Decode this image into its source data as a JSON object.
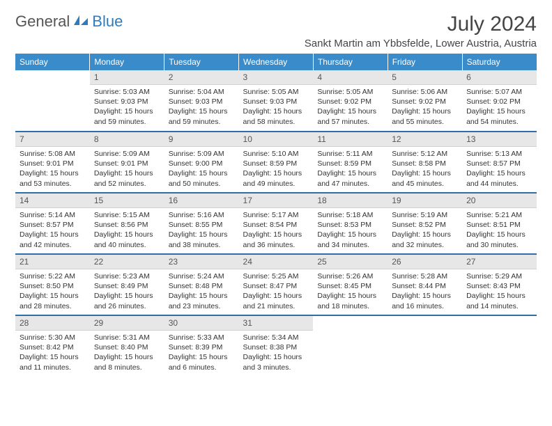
{
  "brand": {
    "part1": "General",
    "part2": "Blue"
  },
  "header": {
    "month_title": "July 2024",
    "location": "Sankt Martin am Ybbsfelde, Lower Austria, Austria"
  },
  "style": {
    "header_bg": "#3a8bc9",
    "header_text": "#ffffff",
    "daynum_bg": "#e7e7e7",
    "row_divider": "#2f6fa8",
    "logo_gray": "#555555",
    "logo_blue": "#2f7bbf",
    "body_text": "#333333",
    "page_bg": "#ffffff"
  },
  "weekdays": [
    "Sunday",
    "Monday",
    "Tuesday",
    "Wednesday",
    "Thursday",
    "Friday",
    "Saturday"
  ],
  "weeks": [
    [
      null,
      {
        "n": "1",
        "sr": "5:03 AM",
        "ss": "9:03 PM",
        "dl": "15 hours and 59 minutes."
      },
      {
        "n": "2",
        "sr": "5:04 AM",
        "ss": "9:03 PM",
        "dl": "15 hours and 59 minutes."
      },
      {
        "n": "3",
        "sr": "5:05 AM",
        "ss": "9:03 PM",
        "dl": "15 hours and 58 minutes."
      },
      {
        "n": "4",
        "sr": "5:05 AM",
        "ss": "9:02 PM",
        "dl": "15 hours and 57 minutes."
      },
      {
        "n": "5",
        "sr": "5:06 AM",
        "ss": "9:02 PM",
        "dl": "15 hours and 55 minutes."
      },
      {
        "n": "6",
        "sr": "5:07 AM",
        "ss": "9:02 PM",
        "dl": "15 hours and 54 minutes."
      }
    ],
    [
      {
        "n": "7",
        "sr": "5:08 AM",
        "ss": "9:01 PM",
        "dl": "15 hours and 53 minutes."
      },
      {
        "n": "8",
        "sr": "5:09 AM",
        "ss": "9:01 PM",
        "dl": "15 hours and 52 minutes."
      },
      {
        "n": "9",
        "sr": "5:09 AM",
        "ss": "9:00 PM",
        "dl": "15 hours and 50 minutes."
      },
      {
        "n": "10",
        "sr": "5:10 AM",
        "ss": "8:59 PM",
        "dl": "15 hours and 49 minutes."
      },
      {
        "n": "11",
        "sr": "5:11 AM",
        "ss": "8:59 PM",
        "dl": "15 hours and 47 minutes."
      },
      {
        "n": "12",
        "sr": "5:12 AM",
        "ss": "8:58 PM",
        "dl": "15 hours and 45 minutes."
      },
      {
        "n": "13",
        "sr": "5:13 AM",
        "ss": "8:57 PM",
        "dl": "15 hours and 44 minutes."
      }
    ],
    [
      {
        "n": "14",
        "sr": "5:14 AM",
        "ss": "8:57 PM",
        "dl": "15 hours and 42 minutes."
      },
      {
        "n": "15",
        "sr": "5:15 AM",
        "ss": "8:56 PM",
        "dl": "15 hours and 40 minutes."
      },
      {
        "n": "16",
        "sr": "5:16 AM",
        "ss": "8:55 PM",
        "dl": "15 hours and 38 minutes."
      },
      {
        "n": "17",
        "sr": "5:17 AM",
        "ss": "8:54 PM",
        "dl": "15 hours and 36 minutes."
      },
      {
        "n": "18",
        "sr": "5:18 AM",
        "ss": "8:53 PM",
        "dl": "15 hours and 34 minutes."
      },
      {
        "n": "19",
        "sr": "5:19 AM",
        "ss": "8:52 PM",
        "dl": "15 hours and 32 minutes."
      },
      {
        "n": "20",
        "sr": "5:21 AM",
        "ss": "8:51 PM",
        "dl": "15 hours and 30 minutes."
      }
    ],
    [
      {
        "n": "21",
        "sr": "5:22 AM",
        "ss": "8:50 PM",
        "dl": "15 hours and 28 minutes."
      },
      {
        "n": "22",
        "sr": "5:23 AM",
        "ss": "8:49 PM",
        "dl": "15 hours and 26 minutes."
      },
      {
        "n": "23",
        "sr": "5:24 AM",
        "ss": "8:48 PM",
        "dl": "15 hours and 23 minutes."
      },
      {
        "n": "24",
        "sr": "5:25 AM",
        "ss": "8:47 PM",
        "dl": "15 hours and 21 minutes."
      },
      {
        "n": "25",
        "sr": "5:26 AM",
        "ss": "8:45 PM",
        "dl": "15 hours and 18 minutes."
      },
      {
        "n": "26",
        "sr": "5:28 AM",
        "ss": "8:44 PM",
        "dl": "15 hours and 16 minutes."
      },
      {
        "n": "27",
        "sr": "5:29 AM",
        "ss": "8:43 PM",
        "dl": "15 hours and 14 minutes."
      }
    ],
    [
      {
        "n": "28",
        "sr": "5:30 AM",
        "ss": "8:42 PM",
        "dl": "15 hours and 11 minutes."
      },
      {
        "n": "29",
        "sr": "5:31 AM",
        "ss": "8:40 PM",
        "dl": "15 hours and 8 minutes."
      },
      {
        "n": "30",
        "sr": "5:33 AM",
        "ss": "8:39 PM",
        "dl": "15 hours and 6 minutes."
      },
      {
        "n": "31",
        "sr": "5:34 AM",
        "ss": "8:38 PM",
        "dl": "15 hours and 3 minutes."
      },
      null,
      null,
      null
    ]
  ],
  "labels": {
    "sunrise": "Sunrise:",
    "sunset": "Sunset:",
    "daylight": "Daylight:"
  }
}
